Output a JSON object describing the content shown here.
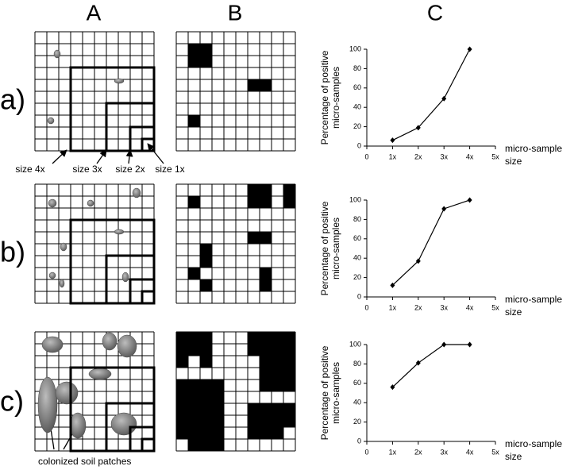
{
  "panel_labels": {
    "columns": [
      "A",
      "B",
      "C"
    ],
    "rows": [
      "a)",
      "b)",
      "c)"
    ]
  },
  "size_labels": [
    "size 4x",
    "size 3x",
    "size 2x",
    "size 1x"
  ],
  "annotation": "colonized soil patches",
  "chart_data": [
    {
      "type": "line",
      "x": [
        1,
        2,
        3,
        4
      ],
      "values": [
        6,
        19,
        49,
        100
      ],
      "color": "#000000",
      "xlim": [
        0,
        5
      ],
      "ylim": [
        0,
        100
      ],
      "xticks": [
        0,
        {
          "value": 1,
          "label": "1x"
        },
        {
          "value": 2,
          "label": "2x"
        },
        {
          "value": 3,
          "label": "3x"
        },
        {
          "value": 4,
          "label": "4x"
        },
        {
          "value": 5,
          "label": "5x"
        }
      ],
      "yticks": [
        0,
        20,
        40,
        60,
        80,
        100
      ],
      "xlabel": [
        "micro-sample",
        "size"
      ],
      "ylabel": [
        "Percentage of positive",
        "micro-samples"
      ]
    },
    {
      "type": "line",
      "x": [
        1,
        2,
        3,
        4
      ],
      "values": [
        12,
        37,
        91,
        100
      ],
      "color": "#000000",
      "xlim": [
        0,
        5
      ],
      "ylim": [
        0,
        100
      ],
      "xticks": [
        0,
        {
          "value": 1,
          "label": "1x"
        },
        {
          "value": 2,
          "label": "2x"
        },
        {
          "value": 3,
          "label": "3x"
        },
        {
          "value": 4,
          "label": "4x"
        },
        {
          "value": 5,
          "label": "5x"
        }
      ],
      "yticks": [
        0,
        20,
        40,
        60,
        80,
        100
      ],
      "xlabel": [
        "micro-sample",
        "size"
      ],
      "ylabel": [
        "Percentage of positive",
        "micro-samples"
      ]
    },
    {
      "type": "line",
      "x": [
        1,
        2,
        3,
        4
      ],
      "values": [
        56,
        81,
        100,
        100
      ],
      "color": "#000000",
      "xlim": [
        0,
        5
      ],
      "ylim": [
        0,
        100
      ],
      "xticks": [
        0,
        {
          "value": 1,
          "label": "1x"
        },
        {
          "value": 2,
          "label": "2x"
        },
        {
          "value": 3,
          "label": "3x"
        },
        {
          "value": 4,
          "label": "4x"
        },
        {
          "value": 5,
          "label": "5x"
        }
      ],
      "yticks": [
        0,
        20,
        40,
        60,
        80,
        100
      ],
      "xlabel": [
        "micro-sample",
        "size"
      ],
      "ylabel": [
        "Percentage of positive",
        "micro-samples"
      ]
    }
  ]
}
